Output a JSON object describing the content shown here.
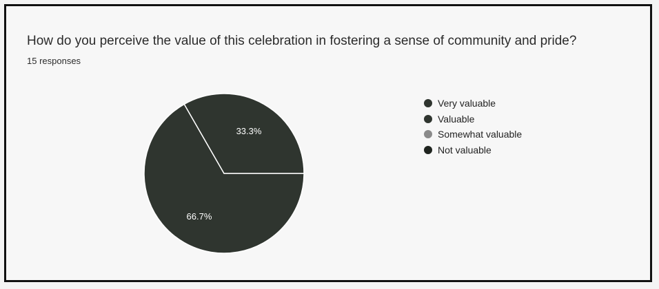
{
  "question": {
    "title": "How do you perceive the value of this celebration in fostering a sense of community and pride?",
    "responses": "15 responses"
  },
  "chart_data": {
    "type": "pie",
    "title": "How do you perceive the value of this celebration in fostering a sense of community and pride?",
    "categories": [
      "Very valuable",
      "Valuable",
      "Somewhat valuable",
      "Not valuable"
    ],
    "values": [
      66.7,
      33.3,
      0,
      0
    ],
    "labels": [
      "66.7%",
      "33.3%",
      "",
      ""
    ],
    "colors": [
      "#2f352f",
      "#2f352f",
      "#8a8a8a",
      "#1f241f"
    ],
    "legend_position": "right"
  }
}
